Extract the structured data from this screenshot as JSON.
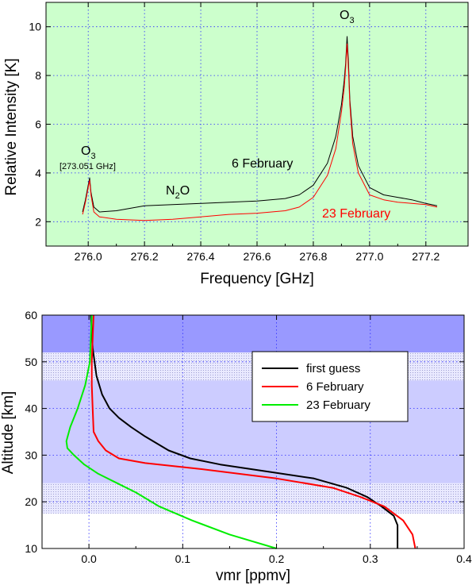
{
  "chart_data": [
    {
      "type": "line",
      "title": "",
      "xlabel": "Frequency [GHz]",
      "ylabel": "Relative Intensity [K]",
      "xlim": [
        275.85,
        277.35
      ],
      "ylim": [
        1.0,
        11.0
      ],
      "xticks": [
        "276.0",
        "276.2",
        "276.4",
        "276.6",
        "276.8",
        "277.0",
        "277.2"
      ],
      "xtick_values": [
        276.0,
        276.2,
        276.4,
        276.6,
        276.8,
        277.0,
        277.2
      ],
      "yticks": [
        "2",
        "4",
        "6",
        "8",
        "10"
      ],
      "ytick_values": [
        2,
        4,
        6,
        8,
        10
      ],
      "background": "#ccffcc",
      "grid": true,
      "annotations": {
        "o3_main": {
          "base": "O",
          "sub": "3"
        },
        "o3_left": {
          "base": "O",
          "sub": "3"
        },
        "o3_left_freq": "[273.051 GHz]",
        "n2o": {
          "base": "N",
          "sub": "2",
          "tail": "O"
        },
        "feb6": "6 February",
        "feb23": "23 February"
      },
      "series": [
        {
          "name": "6 February",
          "color": "#000000",
          "x": [
            275.98,
            275.99,
            276.0,
            276.005,
            276.01,
            276.02,
            276.04,
            276.1,
            276.2,
            276.3,
            276.4,
            276.5,
            276.6,
            276.7,
            276.75,
            276.8,
            276.85,
            276.88,
            276.9,
            276.91,
            276.915,
            276.92,
            276.925,
            276.93,
            276.94,
            276.96,
            277.0,
            277.05,
            277.1,
            277.15,
            277.2,
            277.24
          ],
          "y": [
            2.4,
            2.9,
            3.5,
            3.8,
            3.2,
            2.6,
            2.4,
            2.45,
            2.65,
            2.7,
            2.75,
            2.8,
            2.85,
            2.95,
            3.1,
            3.5,
            4.4,
            5.5,
            6.8,
            7.8,
            8.5,
            9.6,
            8.5,
            7.0,
            5.5,
            4.3,
            3.4,
            3.1,
            3.0,
            2.9,
            2.75,
            2.65
          ]
        },
        {
          "name": "23 February",
          "color": "#ff0000",
          "x": [
            275.98,
            275.99,
            276.0,
            276.005,
            276.01,
            276.02,
            276.04,
            276.1,
            276.2,
            276.3,
            276.4,
            276.5,
            276.6,
            276.7,
            276.75,
            276.8,
            276.85,
            276.88,
            276.9,
            276.91,
            276.915,
            276.92,
            276.925,
            276.93,
            276.94,
            276.96,
            277.0,
            277.05,
            277.1,
            277.15,
            277.2,
            277.24
          ],
          "y": [
            2.3,
            2.8,
            3.4,
            3.7,
            3.1,
            2.4,
            2.2,
            2.1,
            2.05,
            2.1,
            2.2,
            2.3,
            2.35,
            2.45,
            2.6,
            3.0,
            3.9,
            5.0,
            6.5,
            7.5,
            8.3,
            9.3,
            8.2,
            6.8,
            5.2,
            4.0,
            3.1,
            2.9,
            2.8,
            2.75,
            2.7,
            2.6
          ]
        }
      ]
    },
    {
      "type": "line",
      "title": "",
      "xlabel": "vmr [ppmv]",
      "ylabel": "Altitude [km]",
      "xlim": [
        -0.05,
        0.4
      ],
      "ylim": [
        10,
        60
      ],
      "xticks": [
        "0.0",
        "0.1",
        "0.2",
        "0.3",
        "0.4"
      ],
      "xtick_values": [
        0.0,
        0.1,
        0.2,
        0.3,
        0.4
      ],
      "yticks": [
        "10",
        "20",
        "30",
        "40",
        "50",
        "60"
      ],
      "ytick_values": [
        10,
        20,
        30,
        40,
        50,
        60
      ],
      "grid": true,
      "legend": "top-right",
      "bands_altitude": {
        "base_color": "#ccccff",
        "top_color": "#9999ff",
        "dotted_zones": [
          [
            17.5,
            24
          ],
          [
            46,
            52
          ]
        ],
        "top_zone": [
          52,
          60
        ]
      },
      "series": [
        {
          "name": "first guess",
          "color": "#000000",
          "x": [
            0.329,
            0.329,
            0.329,
            0.325,
            0.312,
            0.297,
            0.275,
            0.24,
            0.19,
            0.14,
            0.108,
            0.085,
            0.06,
            0.045,
            0.032,
            0.022,
            0.014,
            0.008,
            0.004,
            0.002
          ],
          "y": [
            10,
            13,
            15,
            17,
            19,
            21,
            23,
            25,
            26.5,
            28,
            29.3,
            31,
            34,
            36,
            38,
            40,
            43,
            47,
            53,
            60
          ]
        },
        {
          "name": "6 February",
          "color": "#ff0000",
          "x": [
            0.348,
            0.345,
            0.335,
            0.315,
            0.29,
            0.26,
            0.2,
            0.12,
            0.06,
            0.032,
            0.018,
            0.01,
            0.005,
            0.004,
            0.003,
            0.003,
            0.004,
            0.005
          ],
          "y": [
            10,
            13,
            16,
            19,
            21,
            23,
            25,
            27,
            28.3,
            29.3,
            31,
            33,
            35,
            40,
            45,
            50,
            55,
            60
          ]
        },
        {
          "name": "23 February",
          "color": "#00ee00",
          "x": [
            0.2,
            0.15,
            0.11,
            0.075,
            0.05,
            0.03,
            0.01,
            -0.005,
            -0.016,
            -0.023,
            -0.024,
            -0.02,
            -0.012,
            -0.004,
            0.001,
            0.003
          ],
          "y": [
            10,
            13,
            16,
            19,
            22,
            24,
            26,
            28,
            30,
            31.5,
            33,
            36,
            40,
            45,
            50,
            60
          ]
        }
      ]
    }
  ]
}
